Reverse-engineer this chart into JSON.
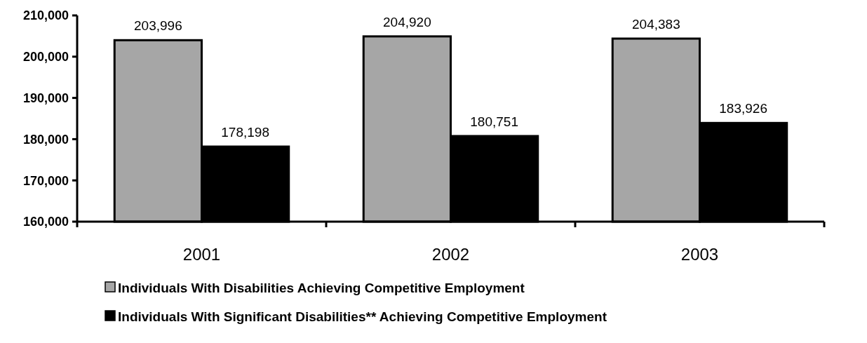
{
  "chart_data": {
    "type": "bar",
    "categories": [
      "2001",
      "2002",
      "2003"
    ],
    "series": [
      {
        "name": "Individuals With Disabilities Achieving Competitive Employment",
        "color": "#a6a6a6",
        "values": [
          203996,
          204920,
          204383
        ],
        "value_labels": [
          "203,996",
          "204,920",
          "204,383"
        ]
      },
      {
        "name": "Individuals With Significant Disabilities** Achieving Competitive Employment",
        "color": "#000000",
        "values": [
          178198,
          180751,
          183926
        ],
        "value_labels": [
          "178,198",
          "180,751",
          "183,926"
        ]
      }
    ],
    "ylim": [
      160000,
      210000
    ],
    "yticks": [
      {
        "value": 160000,
        "label": "160,000"
      },
      {
        "value": 170000,
        "label": "170,000"
      },
      {
        "value": 180000,
        "label": "180,000"
      },
      {
        "value": 190000,
        "label": "190,000"
      },
      {
        "value": 200000,
        "label": "200,000"
      },
      {
        "value": 210000,
        "label": "210,000"
      }
    ],
    "grid": false,
    "legend": "bottom"
  }
}
